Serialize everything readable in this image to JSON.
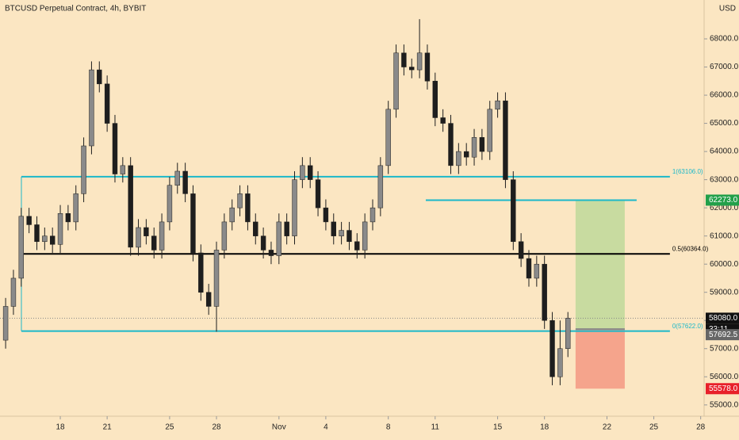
{
  "chart_data": {
    "type": "candlestick",
    "title": "BTCUSD Perpetual Contract, 4h, BYBIT",
    "currency": "USD",
    "up_color": "#8a8a8a",
    "down_color": "#1e1e1e",
    "x": [
      14.5,
      15,
      15.5,
      16,
      16.5,
      17,
      17.5,
      18,
      18.5,
      19,
      19.5,
      20,
      20.5,
      21,
      21.5,
      22,
      22.5,
      23,
      23.5,
      24,
      24.5,
      25,
      25.5,
      26,
      26.5,
      27,
      27.5,
      28,
      28.5,
      29,
      29.5,
      30,
      30.5,
      31,
      31.5,
      32,
      32.5,
      33,
      33.5,
      34,
      34.5,
      35,
      35.5,
      36,
      36.5,
      37,
      37.5,
      38,
      38.5,
      39,
      39.5,
      40,
      40.5,
      41,
      41.5,
      42,
      42.5,
      43,
      43.5,
      44,
      44.5,
      45,
      45.5,
      46,
      46.5,
      47,
      47.5,
      48,
      48.5,
      49,
      49.5,
      50,
      50.5
    ],
    "open": [
      57300,
      58500,
      59500,
      61700,
      61400,
      60800,
      61000,
      60700,
      61800,
      61500,
      62500,
      64200,
      66900,
      66400,
      65000,
      63200,
      63500,
      60600,
      61300,
      61000,
      60500,
      61500,
      62800,
      63300,
      62500,
      60400,
      59000,
      58500,
      60500,
      61500,
      62000,
      62500,
      61500,
      61000,
      60500,
      60300,
      61500,
      61000,
      63000,
      63500,
      63000,
      62000,
      61500,
      61000,
      61200,
      60800,
      60500,
      61500,
      62000,
      63500,
      65500,
      67500,
      67000,
      66900,
      67500,
      66500,
      65200,
      65000,
      63500,
      64000,
      63800,
      64500,
      64000,
      65500,
      65800,
      63000,
      60800,
      60200,
      59500,
      60000,
      58000,
      56000,
      57000
    ],
    "high": [
      58800,
      59800,
      62000,
      62000,
      61700,
      61300,
      61300,
      62100,
      62100,
      62800,
      64500,
      67200,
      67200,
      66700,
      65300,
      63800,
      63800,
      61600,
      61600,
      61300,
      61800,
      63100,
      63600,
      63600,
      62800,
      60700,
      59300,
      60800,
      61800,
      62300,
      62800,
      62800,
      61800,
      61300,
      60800,
      61800,
      61800,
      63300,
      63800,
      63800,
      63300,
      62300,
      61800,
      61500,
      61500,
      61100,
      61800,
      62300,
      63800,
      65800,
      67800,
      67800,
      67300,
      68700,
      67800,
      66800,
      65500,
      65300,
      64300,
      64300,
      64800,
      64800,
      65800,
      66100,
      66100,
      63300,
      61100,
      60500,
      60300,
      60300,
      58300,
      58000,
      58300
    ],
    "low": [
      57000,
      58200,
      59200,
      61100,
      60500,
      60500,
      60400,
      60400,
      61200,
      61200,
      62200,
      63900,
      66100,
      64700,
      62900,
      62900,
      60300,
      60300,
      60700,
      60200,
      60200,
      61200,
      62500,
      62200,
      60100,
      58700,
      58200,
      57600,
      60200,
      61200,
      61700,
      61200,
      60700,
      60200,
      60000,
      60000,
      60700,
      60700,
      62700,
      62700,
      61700,
      61200,
      60700,
      60700,
      60500,
      60200,
      60200,
      61200,
      61700,
      63200,
      65200,
      66700,
      66600,
      66600,
      66200,
      64900,
      64700,
      63200,
      63200,
      63500,
      63500,
      63700,
      63700,
      65200,
      62700,
      60500,
      59900,
      59200,
      59200,
      57700,
      55700,
      55700,
      56700
    ],
    "close": [
      58500,
      59500,
      61700,
      61400,
      60800,
      61000,
      60700,
      61800,
      61500,
      62500,
      64200,
      66900,
      66400,
      65000,
      63200,
      63500,
      60600,
      61300,
      61000,
      60500,
      61500,
      62800,
      63300,
      62500,
      60400,
      59000,
      58500,
      60500,
      61500,
      62000,
      62500,
      61500,
      61000,
      60500,
      60300,
      61500,
      61000,
      63000,
      63500,
      63000,
      62000,
      61500,
      61000,
      61200,
      60800,
      60500,
      61500,
      62000,
      63500,
      65500,
      67500,
      67000,
      66900,
      67500,
      66500,
      65200,
      65000,
      63500,
      64000,
      63800,
      64500,
      64000,
      65500,
      65800,
      63000,
      60800,
      60200,
      59500,
      60000,
      58000,
      56000,
      57000,
      58080
    ],
    "xlim": [
      14.14,
      59.22
    ],
    "xticks": [
      {
        "value": 18,
        "label": "18"
      },
      {
        "value": 21,
        "label": "21"
      },
      {
        "value": 25,
        "label": "25"
      },
      {
        "value": 28,
        "label": "28"
      },
      {
        "value": 32,
        "label": "Nov"
      },
      {
        "value": 35,
        "label": "4"
      },
      {
        "value": 39,
        "label": "8"
      },
      {
        "value": 42,
        "label": "11"
      },
      {
        "value": 46,
        "label": "15"
      },
      {
        "value": 49,
        "label": "18"
      },
      {
        "value": 53,
        "label": "22"
      },
      {
        "value": 56,
        "label": "25"
      },
      {
        "value": 59,
        "label": "28"
      }
    ],
    "ylim": [
      54600,
      69380
    ],
    "yticks": [
      {
        "value": 55000,
        "label": "55000.0"
      },
      {
        "value": 56000,
        "label": "56000.0"
      },
      {
        "value": 57000,
        "label": "57000.0"
      },
      {
        "value": 58000,
        "label": "58000.0"
      },
      {
        "value": 59000,
        "label": "59000.0"
      },
      {
        "value": 60000,
        "label": "60000.0"
      },
      {
        "value": 61000,
        "label": "61000.0"
      },
      {
        "value": 62000,
        "label": "62000.0"
      },
      {
        "value": 63000,
        "label": "63000.0"
      },
      {
        "value": 64000,
        "label": "64000.0"
      },
      {
        "value": 65000,
        "label": "65000.0"
      },
      {
        "value": 66000,
        "label": "66000.0"
      },
      {
        "value": 67000,
        "label": "67000.0"
      },
      {
        "value": 68000,
        "label": "68000.0"
      }
    ],
    "levels": [
      {
        "value": 63106,
        "label": "1(63106.0)",
        "color": "#1bb8c9",
        "from": 15.51,
        "to": 57.03
      },
      {
        "value": 60364,
        "label": "0.5(60364.0)",
        "color": "#000000",
        "from": 15.51,
        "to": 57.03
      },
      {
        "value": 57622,
        "label": "0(57622.0)",
        "color": "#1bb8c9",
        "from": 15.51,
        "to": 57.03
      },
      {
        "value": 62270,
        "color": "#1bb8c9",
        "from": 41.4,
        "to": 54.9
      }
    ],
    "position": {
      "from": 50.99,
      "to": 54.14,
      "target": 62273,
      "entry": 57692.5,
      "stop": 55578,
      "value_labels": {
        "target": "62273.0",
        "entry": "57692.5",
        "stop": "55578.0"
      },
      "target_color": "#c8dba0",
      "stop_color": "#f5a48c"
    },
    "last_price": 58080,
    "last_price_label": "58080.0",
    "countdown": "33:11"
  }
}
